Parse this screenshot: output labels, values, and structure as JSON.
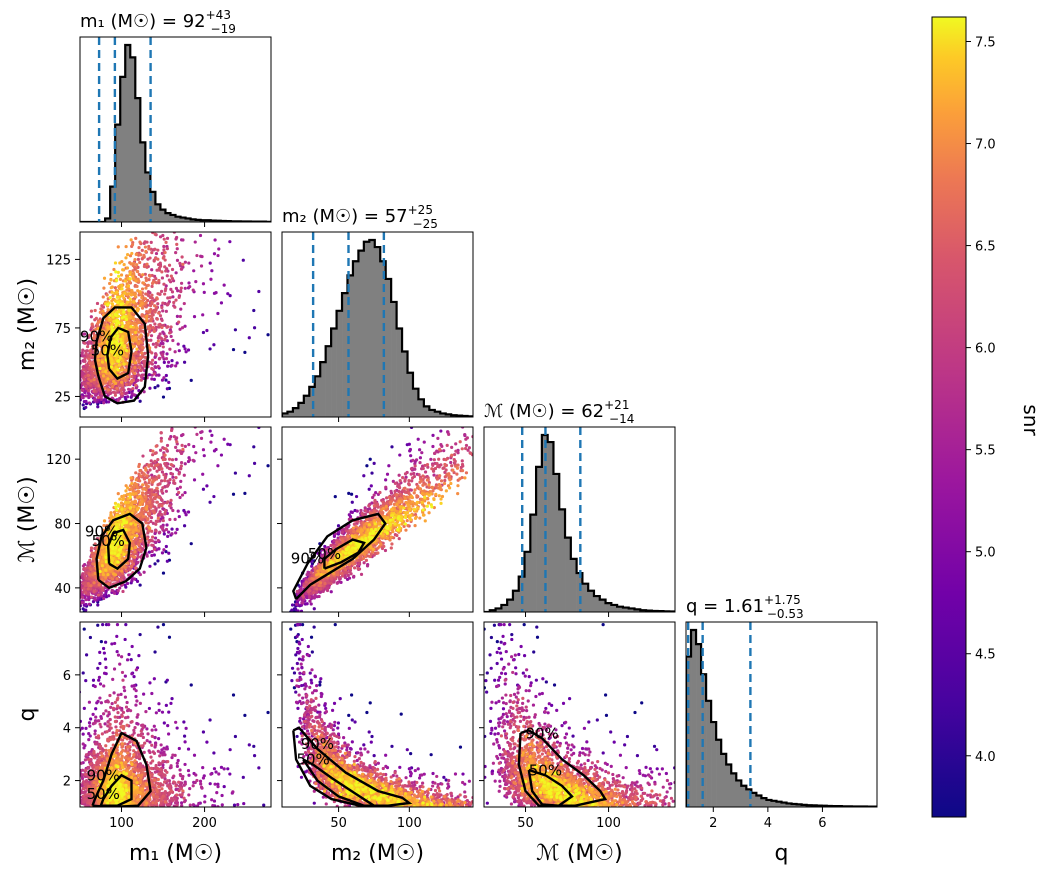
{
  "chart_data": {
    "type": "scatter",
    "description_kind": "corner plot",
    "parameters": [
      {
        "key": "m1",
        "label": "m₁ (M☉)",
        "range": [
          50,
          280
        ],
        "ticks": [
          100,
          200
        ],
        "show_ticks_bottom": true
      },
      {
        "key": "m2",
        "label": "m₂ (M☉)",
        "range": [
          10,
          145
        ],
        "ticks": [
          25,
          75,
          125
        ],
        "xticks": [
          50,
          100
        ]
      },
      {
        "key": "mc",
        "label": "ℳ (M☉)",
        "range": [
          25,
          140
        ],
        "ticks": [
          40,
          80,
          120
        ],
        "xticks": [
          50,
          100
        ]
      },
      {
        "key": "q",
        "label": "q",
        "range": [
          1.0,
          8.0
        ],
        "ticks": [
          2,
          4,
          6
        ]
      }
    ],
    "titles": [
      {
        "param": "m1",
        "text": "m₁ (M☉) = 92",
        "upper": "+43",
        "lower": "−19"
      },
      {
        "param": "m2",
        "text": "m₂ (M☉) = 57",
        "upper": "+25",
        "lower": "−25"
      },
      {
        "param": "mc",
        "text": "ℳ (M☉) = 62",
        "upper": "+21",
        "lower": "−14"
      },
      {
        "param": "q",
        "text": "q = 1.61",
        "upper": "+1.75",
        "lower": "−0.53"
      }
    ],
    "quantiles": {
      "m1": [
        73,
        92,
        135
      ],
      "m2": [
        32,
        57,
        82
      ],
      "mc": [
        48,
        62,
        83
      ],
      "q": [
        1.08,
        1.61,
        3.36
      ]
    },
    "histograms": {
      "m1": [
        0,
        0,
        0,
        0,
        0,
        0.02,
        0.2,
        0.55,
        0.82,
        1.0,
        0.93,
        0.7,
        0.45,
        0.28,
        0.17,
        0.1,
        0.07,
        0.05,
        0.04,
        0.03,
        0.025,
        0.02,
        0.015,
        0.012,
        0.01,
        0.01,
        0.008,
        0.007,
        0.006,
        0.005,
        0.004,
        0.004,
        0.003,
        0.003,
        0.002,
        0.002,
        0.002,
        0.001
      ],
      "m2": [
        0.02,
        0.03,
        0.05,
        0.08,
        0.12,
        0.17,
        0.23,
        0.31,
        0.4,
        0.5,
        0.6,
        0.7,
        0.8,
        0.88,
        0.94,
        0.99,
        1.0,
        0.96,
        0.88,
        0.78,
        0.65,
        0.5,
        0.37,
        0.25,
        0.16,
        0.1,
        0.06,
        0.04,
        0.03,
        0.02,
        0.015,
        0.01,
        0.008,
        0.006,
        0.004
      ],
      "mc": [
        0.0,
        0.01,
        0.02,
        0.04,
        0.07,
        0.12,
        0.2,
        0.34,
        0.55,
        0.82,
        1.0,
        0.96,
        0.78,
        0.58,
        0.42,
        0.3,
        0.22,
        0.16,
        0.12,
        0.09,
        0.07,
        0.05,
        0.04,
        0.03,
        0.025,
        0.02,
        0.015,
        0.01,
        0.008,
        0.006,
        0.005,
        0.004,
        0.003
      ],
      "q": [
        0.85,
        1.0,
        0.92,
        0.75,
        0.6,
        0.48,
        0.38,
        0.3,
        0.24,
        0.19,
        0.15,
        0.12,
        0.1,
        0.08,
        0.065,
        0.05,
        0.04,
        0.035,
        0.03,
        0.025,
        0.02,
        0.017,
        0.015,
        0.012,
        0.01,
        0.009,
        0.008,
        0.007,
        0.006,
        0.005,
        0.005,
        0.004,
        0.004,
        0.003,
        0.003,
        0.003,
        0.002,
        0.002
      ]
    },
    "contours": {
      "m2_m1": {
        "p90": [
          [
            72,
            40
          ],
          [
            80,
            25
          ],
          [
            95,
            20
          ],
          [
            115,
            22
          ],
          [
            128,
            32
          ],
          [
            132,
            55
          ],
          [
            128,
            78
          ],
          [
            112,
            90
          ],
          [
            92,
            90
          ],
          [
            78,
            82
          ],
          [
            70,
            65
          ],
          [
            68,
            52
          ],
          [
            72,
            40
          ]
        ],
        "p50": [
          [
            85,
            45
          ],
          [
            95,
            38
          ],
          [
            108,
            42
          ],
          [
            112,
            58
          ],
          [
            108,
            72
          ],
          [
            96,
            75
          ],
          [
            87,
            68
          ],
          [
            83,
            55
          ],
          [
            85,
            45
          ]
        ]
      },
      "mc_m1": {
        "p90": [
          [
            72,
            45
          ],
          [
            85,
            40
          ],
          [
            105,
            44
          ],
          [
            122,
            52
          ],
          [
            130,
            65
          ],
          [
            125,
            80
          ],
          [
            110,
            86
          ],
          [
            90,
            82
          ],
          [
            76,
            72
          ],
          [
            70,
            58
          ],
          [
            72,
            45
          ]
        ],
        "p50": [
          [
            85,
            55
          ],
          [
            95,
            52
          ],
          [
            108,
            58
          ],
          [
            110,
            68
          ],
          [
            102,
            76
          ],
          [
            90,
            74
          ],
          [
            84,
            66
          ],
          [
            85,
            55
          ]
        ]
      },
      "mc_m2": {
        "p90": [
          [
            20,
            33
          ],
          [
            30,
            42
          ],
          [
            45,
            50
          ],
          [
            60,
            58
          ],
          [
            75,
            70
          ],
          [
            83,
            80
          ],
          [
            78,
            86
          ],
          [
            60,
            82
          ],
          [
            42,
            72
          ],
          [
            28,
            55
          ],
          [
            18,
            38
          ],
          [
            20,
            33
          ]
        ],
        "p50": [
          [
            40,
            52
          ],
          [
            52,
            56
          ],
          [
            64,
            62
          ],
          [
            68,
            68
          ],
          [
            60,
            70
          ],
          [
            48,
            64
          ],
          [
            40,
            58
          ],
          [
            40,
            52
          ]
        ]
      },
      "q_m1": {
        "p90": [
          [
            65,
            1.05
          ],
          [
            85,
            1.0
          ],
          [
            120,
            1.05
          ],
          [
            135,
            1.6
          ],
          [
            130,
            2.6
          ],
          [
            118,
            3.5
          ],
          [
            100,
            3.8
          ],
          [
            88,
            3.0
          ],
          [
            78,
            2.0
          ],
          [
            68,
            1.3
          ],
          [
            65,
            1.05
          ]
        ],
        "p50": [
          [
            75,
            1.05
          ],
          [
            95,
            1.05
          ],
          [
            112,
            1.3
          ],
          [
            112,
            2.0
          ],
          [
            100,
            2.2
          ],
          [
            88,
            1.8
          ],
          [
            78,
            1.3
          ],
          [
            75,
            1.05
          ]
        ]
      },
      "q_m2": {
        "p90": [
          [
            18,
            3.9
          ],
          [
            20,
            2.8
          ],
          [
            30,
            1.8
          ],
          [
            45,
            1.3
          ],
          [
            65,
            1.05
          ],
          [
            85,
            1.05
          ],
          [
            100,
            1.15
          ],
          [
            95,
            1.35
          ],
          [
            78,
            1.6
          ],
          [
            55,
            2.3
          ],
          [
            35,
            3.2
          ],
          [
            22,
            4.0
          ],
          [
            18,
            3.9
          ]
        ],
        "p50": [
          [
            25,
            2.8
          ],
          [
            35,
            2.0
          ],
          [
            50,
            1.4
          ],
          [
            68,
            1.05
          ],
          [
            75,
            1.05
          ],
          [
            62,
            1.5
          ],
          [
            45,
            2.1
          ],
          [
            32,
            2.6
          ],
          [
            25,
            2.8
          ]
        ]
      },
      "q_mc": {
        "p90": [
          [
            47,
            3.8
          ],
          [
            46,
            2.6
          ],
          [
            50,
            1.6
          ],
          [
            58,
            1.05
          ],
          [
            80,
            1.05
          ],
          [
            98,
            1.3
          ],
          [
            95,
            1.6
          ],
          [
            85,
            2.2
          ],
          [
            72,
            2.8
          ],
          [
            60,
            3.6
          ],
          [
            52,
            3.9
          ],
          [
            47,
            3.8
          ]
        ],
        "p50": [
          [
            52,
            2.4
          ],
          [
            54,
            1.6
          ],
          [
            60,
            1.1
          ],
          [
            70,
            1.05
          ],
          [
            78,
            1.4
          ],
          [
            72,
            1.8
          ],
          [
            62,
            2.2
          ],
          [
            52,
            2.4
          ]
        ]
      }
    },
    "contour_labels": [
      "50%",
      "90%"
    ],
    "colorbar": {
      "label": "snr",
      "range": [
        3.7,
        7.62
      ],
      "ticks": [
        4.0,
        4.5,
        5.0,
        5.5,
        6.0,
        6.5,
        7.0,
        7.5
      ],
      "tick_labels": [
        "4.0",
        "4.5",
        "5.0",
        "5.5",
        "6.0",
        "6.5",
        "7.0",
        "7.5"
      ],
      "colormap": "plasma"
    },
    "hist_color": "#808080",
    "quantile_color": "#1f77b4",
    "contour_color": "#000000"
  }
}
